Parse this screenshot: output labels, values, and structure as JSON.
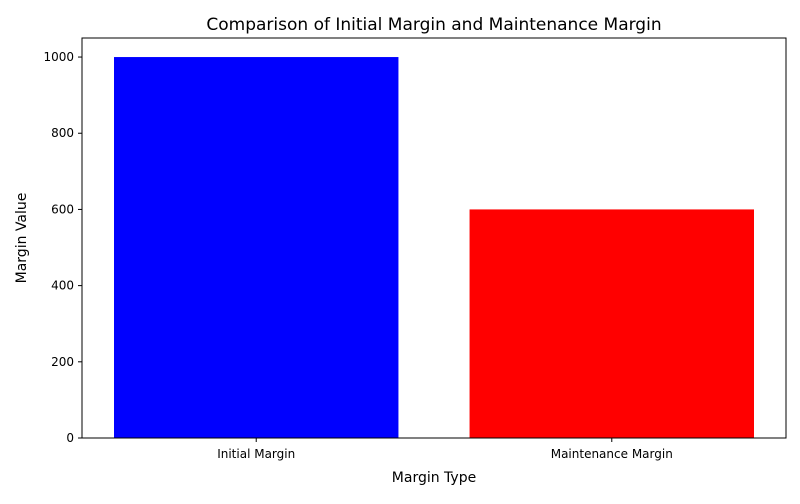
{
  "chart_data": {
    "type": "bar",
    "title": "Comparison of Initial Margin and Maintenance Margin",
    "xlabel": "Margin Type",
    "ylabel": "Margin Value",
    "categories": [
      "Initial Margin",
      "Maintenance Margin"
    ],
    "values": [
      1000,
      600
    ],
    "colors": [
      "#0000ff",
      "#ff0000"
    ],
    "ylim": [
      0,
      1050
    ],
    "yticks": [
      0,
      200,
      400,
      600,
      800,
      1000
    ],
    "grid": false,
    "legend": "none"
  }
}
